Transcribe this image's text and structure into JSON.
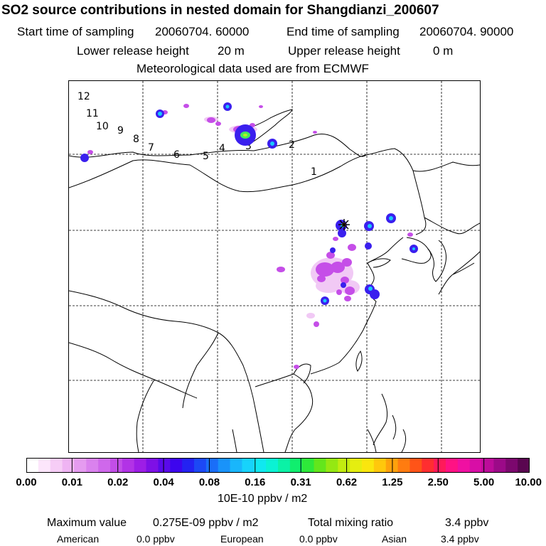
{
  "title": "SO2 source contributions in nested domain for Shangdianzi_200607",
  "start_label": "Start time of sampling",
  "start_value": "20060704. 60000",
  "end_label": "End time of sampling",
  "end_value": "20060704. 90000",
  "lower_label": "Lower release height",
  "lower_value": "20 m",
  "upper_label": "Upper release height",
  "upper_value": "0 m",
  "met_text": "Meteorological data used are from ECMWF",
  "colorbar": {
    "ticks": [
      "0.00",
      "0.01",
      "0.02",
      "0.04",
      "0.08",
      "0.16",
      "0.31",
      "0.62",
      "1.25",
      "2.50",
      "5.00",
      "10.00"
    ],
    "unit": "10E-10 ppbv / m2",
    "colors": [
      "#ffffff",
      "#fce6fb",
      "#f6cdf6",
      "#efb4f3",
      "#e59bf0",
      "#da82ee",
      "#cf68eb",
      "#c34ee8",
      "#b233e6",
      "#9d1ee6",
      "#7e10e6",
      "#5a0aea",
      "#3d05ee",
      "#2422f2",
      "#1c48f5",
      "#1a6ef8",
      "#1993fa",
      "#19b6fb",
      "#17d3fb",
      "#10e8f0",
      "#0bf2d4",
      "#0bf2a6",
      "#10ee6e",
      "#2ee83a",
      "#63e61c",
      "#95e812",
      "#c2ec10",
      "#e5ee10",
      "#fae60e",
      "#ffc80c",
      "#ffa20c",
      "#ff7c10",
      "#ff5418",
      "#ff2e30",
      "#ff1a5a",
      "#ff1284",
      "#f010a2",
      "#d80ea6",
      "#bc0c9a",
      "#9c0a88",
      "#7c086e",
      "#5a0650"
    ]
  },
  "footer": {
    "max_label": "Maximum value",
    "max_value": "0.275E-09 ppbv / m2",
    "total_label": "Total mixing ratio",
    "total_value": "3.4 ppbv",
    "american_label": "American",
    "american_value": "0.0 ppbv",
    "european_label": "European",
    "european_value": "0.0 ppbv",
    "asian_label": "Asian",
    "asian_value": "3.4 ppbv"
  },
  "map_labels": [
    "12",
    "11",
    "10",
    "9",
    "8",
    "7",
    "6",
    "5",
    "4",
    "3",
    "2",
    "1"
  ]
}
